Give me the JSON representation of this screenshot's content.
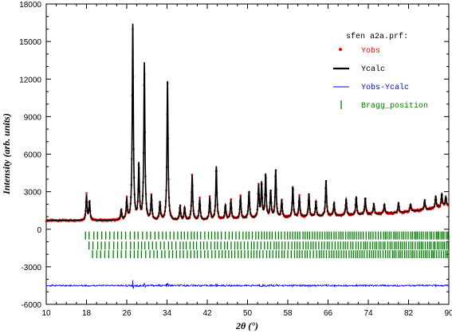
{
  "chart_data": {
    "type": "line",
    "title": "",
    "xlabel": "2θ (°)",
    "ylabel": "Intensity (arb. units)",
    "xlim": [
      10,
      90
    ],
    "ylim": [
      -6000,
      18000
    ],
    "x_ticks": [
      10,
      18,
      26,
      34,
      42,
      50,
      58,
      66,
      74,
      82,
      90
    ],
    "y_ticks": [
      -6000,
      -3000,
      0,
      3000,
      6000,
      9000,
      12000,
      15000,
      18000
    ],
    "legend": {
      "placement": "top-right",
      "file": "sfen a2a.prf:",
      "entries": [
        {
          "name": "Yobs",
          "color": "#ff0000",
          "marker": "dot"
        },
        {
          "name": "Ycalc",
          "color": "#000000",
          "marker": "line"
        },
        {
          "name": "Yobs-Ycalc",
          "color": "#0000ff",
          "marker": "thin-line"
        },
        {
          "name": "Bragg_position",
          "color": "#008000",
          "marker": "tick"
        }
      ]
    },
    "background": [
      [
        10,
        700
      ],
      [
        20,
        700
      ],
      [
        30,
        680
      ],
      [
        40,
        700
      ],
      [
        50,
        850
      ],
      [
        60,
        950
      ],
      [
        70,
        1100
      ],
      [
        80,
        1300
      ],
      [
        86,
        1600
      ],
      [
        90,
        1900
      ]
    ],
    "peaks": [
      {
        "x": 18.0,
        "y": 2700
      },
      {
        "x": 18.6,
        "y": 2200
      },
      {
        "x": 24.9,
        "y": 1500
      },
      {
        "x": 26.0,
        "y": 2300
      },
      {
        "x": 27.2,
        "y": 16300
      },
      {
        "x": 28.4,
        "y": 5000
      },
      {
        "x": 29.5,
        "y": 13200
      },
      {
        "x": 30.9,
        "y": 2600
      },
      {
        "x": 32.6,
        "y": 2100
      },
      {
        "x": 34.1,
        "y": 11800
      },
      {
        "x": 36.6,
        "y": 1800
      },
      {
        "x": 37.5,
        "y": 1700
      },
      {
        "x": 39.0,
        "y": 4300
      },
      {
        "x": 40.5,
        "y": 2400
      },
      {
        "x": 42.5,
        "y": 2500
      },
      {
        "x": 43.8,
        "y": 5000
      },
      {
        "x": 45.6,
        "y": 1900
      },
      {
        "x": 46.7,
        "y": 2300
      },
      {
        "x": 48.6,
        "y": 2600
      },
      {
        "x": 50.3,
        "y": 3000
      },
      {
        "x": 52.2,
        "y": 3400
      },
      {
        "x": 52.8,
        "y": 3600
      },
      {
        "x": 53.6,
        "y": 4300
      },
      {
        "x": 54.6,
        "y": 3000
      },
      {
        "x": 55.6,
        "y": 4700
      },
      {
        "x": 56.8,
        "y": 2300
      },
      {
        "x": 59.0,
        "y": 3400
      },
      {
        "x": 60.3,
        "y": 2600
      },
      {
        "x": 62.2,
        "y": 2800
      },
      {
        "x": 63.6,
        "y": 2200
      },
      {
        "x": 65.6,
        "y": 3900
      },
      {
        "x": 67.2,
        "y": 2100
      },
      {
        "x": 69.6,
        "y": 2400
      },
      {
        "x": 71.6,
        "y": 2600
      },
      {
        "x": 73.4,
        "y": 2500
      },
      {
        "x": 75.1,
        "y": 2000
      },
      {
        "x": 77.2,
        "y": 2000
      },
      {
        "x": 80.0,
        "y": 2100
      },
      {
        "x": 82.4,
        "y": 2000
      },
      {
        "x": 85.2,
        "y": 2300
      },
      {
        "x": 87.4,
        "y": 2600
      },
      {
        "x": 88.6,
        "y": 2800
      },
      {
        "x": 89.4,
        "y": 2600
      }
    ],
    "difference_baseline": -4500,
    "bragg_rows_y": [
      -500,
      -1300,
      -2000
    ]
  }
}
